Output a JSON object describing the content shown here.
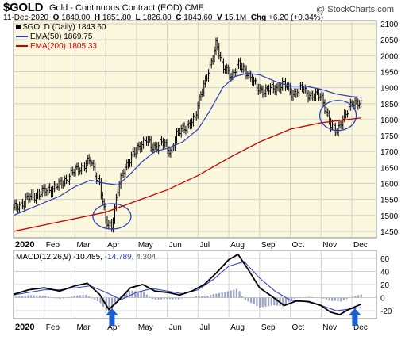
{
  "header": {
    "ticker": "$GOLD",
    "name": "Gold - Continuous Contract (EOD)",
    "exchange": "CME",
    "watermark": "@ StockCharts.com",
    "date": "11-Dec-2020",
    "open_label": "O",
    "open": "1840.00",
    "high_label": "H",
    "high": "1851.80",
    "low_label": "L",
    "low": "1826.80",
    "close_label": "C",
    "close": "1843.60",
    "volume_label": "V",
    "volume": "15.1M",
    "change_label": "Chg",
    "change": "+6.20 (+0.34%)"
  },
  "legend": {
    "price": "$GOLD (Daily) 1843.60",
    "ema50": "EMA(50) 1869.75",
    "ema200": "EMA(200) 1805.33"
  },
  "macd_legend": {
    "name": "MACD(12,26,9)",
    "macd": "-10.485",
    "signal": "-14.789",
    "hist": "4.304"
  },
  "colors": {
    "price_panel_bg": "#fbf7dc",
    "macd_panel_bg": "#ffffff",
    "price_bars": "#000000",
    "ema50": "#2a3bb8",
    "ema200": "#cc0000",
    "macd_line": "#000000",
    "signal_line": "#3845c4",
    "histogram": "#9aa3c4",
    "annotation_ellipse": "#2a3bb8",
    "annotation_arrow": "#1a5fd0",
    "grid": "#d0cfcf"
  },
  "chart_data": [
    {
      "type": "ohlc",
      "title": "$GOLD (Daily)",
      "months": [
        "2020",
        "Feb",
        "Mar",
        "Apr",
        "May",
        "Jun",
        "Jul",
        "Aug",
        "Sep",
        "Oct",
        "Nov",
        "Dec"
      ],
      "ylim": [
        1430,
        2110
      ],
      "yticks": [
        1450,
        1500,
        1550,
        1600,
        1650,
        1700,
        1750,
        1800,
        1850,
        1900,
        1950,
        2000,
        2050,
        2100
      ],
      "grid": true,
      "series": [
        {
          "name": "$GOLD (Daily)",
          "x": [
            0,
            0.5,
            1,
            1.5,
            2,
            2.5,
            2.8,
            3,
            3.2,
            3.4,
            3.6,
            3.9,
            4.1,
            4.3,
            4.5,
            4.8,
            5.1,
            5.3,
            5.6,
            5.9,
            6.1,
            6.4,
            6.6,
            6.8,
            7.1,
            7.3,
            7.6,
            7.9,
            8.2,
            8.5,
            8.8,
            9.1,
            9.4,
            9.7,
            10.0,
            10.3,
            10.5,
            10.8,
            11.0,
            11.3
          ],
          "values": [
            1520,
            1555,
            1575,
            1595,
            1640,
            1670,
            1600,
            1480,
            1470,
            1580,
            1650,
            1690,
            1720,
            1740,
            1710,
            1730,
            1700,
            1750,
            1780,
            1800,
            1890,
            1960,
            2050,
            1960,
            1940,
            1970,
            1950,
            1900,
            1890,
            1900,
            1910,
            1880,
            1900,
            1870,
            1880,
            1780,
            1770,
            1810,
            1860,
            1843
          ]
        },
        {
          "name": "EMA(50)",
          "x": [
            0,
            0.5,
            1,
            1.5,
            2,
            2.5,
            3,
            3.4,
            3.8,
            4.2,
            4.6,
            5,
            5.5,
            6,
            6.4,
            6.8,
            7.2,
            7.6,
            8,
            8.5,
            9,
            9.5,
            10,
            10.5,
            11,
            11.3
          ],
          "values": [
            1500,
            1520,
            1540,
            1560,
            1590,
            1610,
            1600,
            1595,
            1630,
            1670,
            1700,
            1710,
            1730,
            1770,
            1830,
            1900,
            1935,
            1945,
            1940,
            1920,
            1905,
            1905,
            1895,
            1880,
            1872,
            1870
          ]
        },
        {
          "name": "EMA(200)",
          "x": [
            0,
            1,
            2,
            3,
            4,
            5,
            6,
            7,
            8,
            9,
            10,
            11,
            11.3
          ],
          "values": [
            1450,
            1470,
            1490,
            1510,
            1545,
            1580,
            1625,
            1680,
            1730,
            1770,
            1790,
            1802,
            1805
          ]
        }
      ],
      "annotations": [
        "ellipse near March low",
        "ellipse near early December low"
      ]
    },
    {
      "type": "line",
      "title": "MACD(12,26,9)",
      "ylim": [
        -32,
        72
      ],
      "yticks": [
        -20,
        0,
        20,
        40,
        60
      ],
      "series": [
        {
          "name": "MACD",
          "x": [
            0,
            0.5,
            1,
            1.5,
            2,
            2.4,
            2.8,
            3.1,
            3.4,
            3.8,
            4.2,
            4.6,
            5,
            5.4,
            5.8,
            6.2,
            6.6,
            7,
            7.3,
            7.6,
            8,
            8.4,
            8.8,
            9.2,
            9.6,
            10,
            10.3,
            10.6,
            10.9,
            11.3
          ],
          "values": [
            5,
            12,
            15,
            10,
            18,
            22,
            5,
            -18,
            -5,
            15,
            20,
            10,
            8,
            4,
            10,
            20,
            38,
            58,
            66,
            45,
            15,
            2,
            -12,
            -5,
            -6,
            -12,
            -22,
            -26,
            -18,
            -10
          ]
        },
        {
          "name": "Signal",
          "x": [
            0,
            0.5,
            1,
            1.5,
            2,
            2.5,
            3,
            3.5,
            4,
            4.5,
            5,
            5.5,
            6,
            6.5,
            7,
            7.5,
            8,
            8.5,
            9,
            9.5,
            10,
            10.5,
            11,
            11.3
          ],
          "values": [
            4,
            8,
            12,
            12,
            15,
            18,
            8,
            -3,
            8,
            14,
            10,
            6,
            12,
            28,
            48,
            55,
            30,
            10,
            -4,
            -6,
            -12,
            -20,
            -17,
            -15
          ]
        }
      ],
      "markers": [
        "up arrow at early April",
        "up arrow at early December"
      ]
    }
  ]
}
